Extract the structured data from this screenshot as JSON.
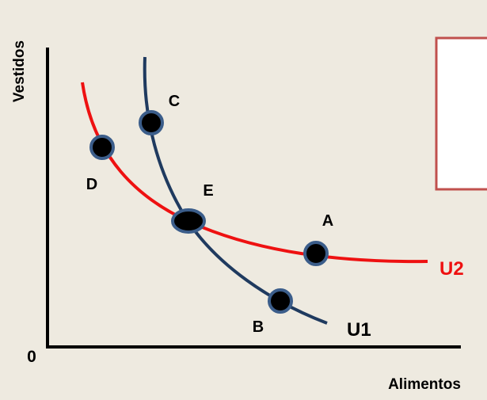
{
  "axes": {
    "y_label": "Vestidos",
    "x_label": "Alimentos",
    "origin_label": "0"
  },
  "curves": [
    {
      "id": "U1",
      "label": "U1",
      "color": "#1f3a5f"
    },
    {
      "id": "U2",
      "label": "U2",
      "color": "#ee1111"
    }
  ],
  "points": [
    {
      "id": "A",
      "label": "A",
      "curve": "U2"
    },
    {
      "id": "B",
      "label": "B",
      "curve": "U1"
    },
    {
      "id": "C",
      "label": "C",
      "curve": "U1"
    },
    {
      "id": "D",
      "label": "D",
      "curve": "U2"
    },
    {
      "id": "E",
      "label": "E",
      "curve": "U1,U2"
    }
  ],
  "colors": {
    "background": "#eeeae0",
    "axis": "#000000",
    "point_fill": "#000000",
    "point_stroke": "#3b5d8a",
    "box_stroke": "#c0504d",
    "box_fill": "#ffffff"
  }
}
